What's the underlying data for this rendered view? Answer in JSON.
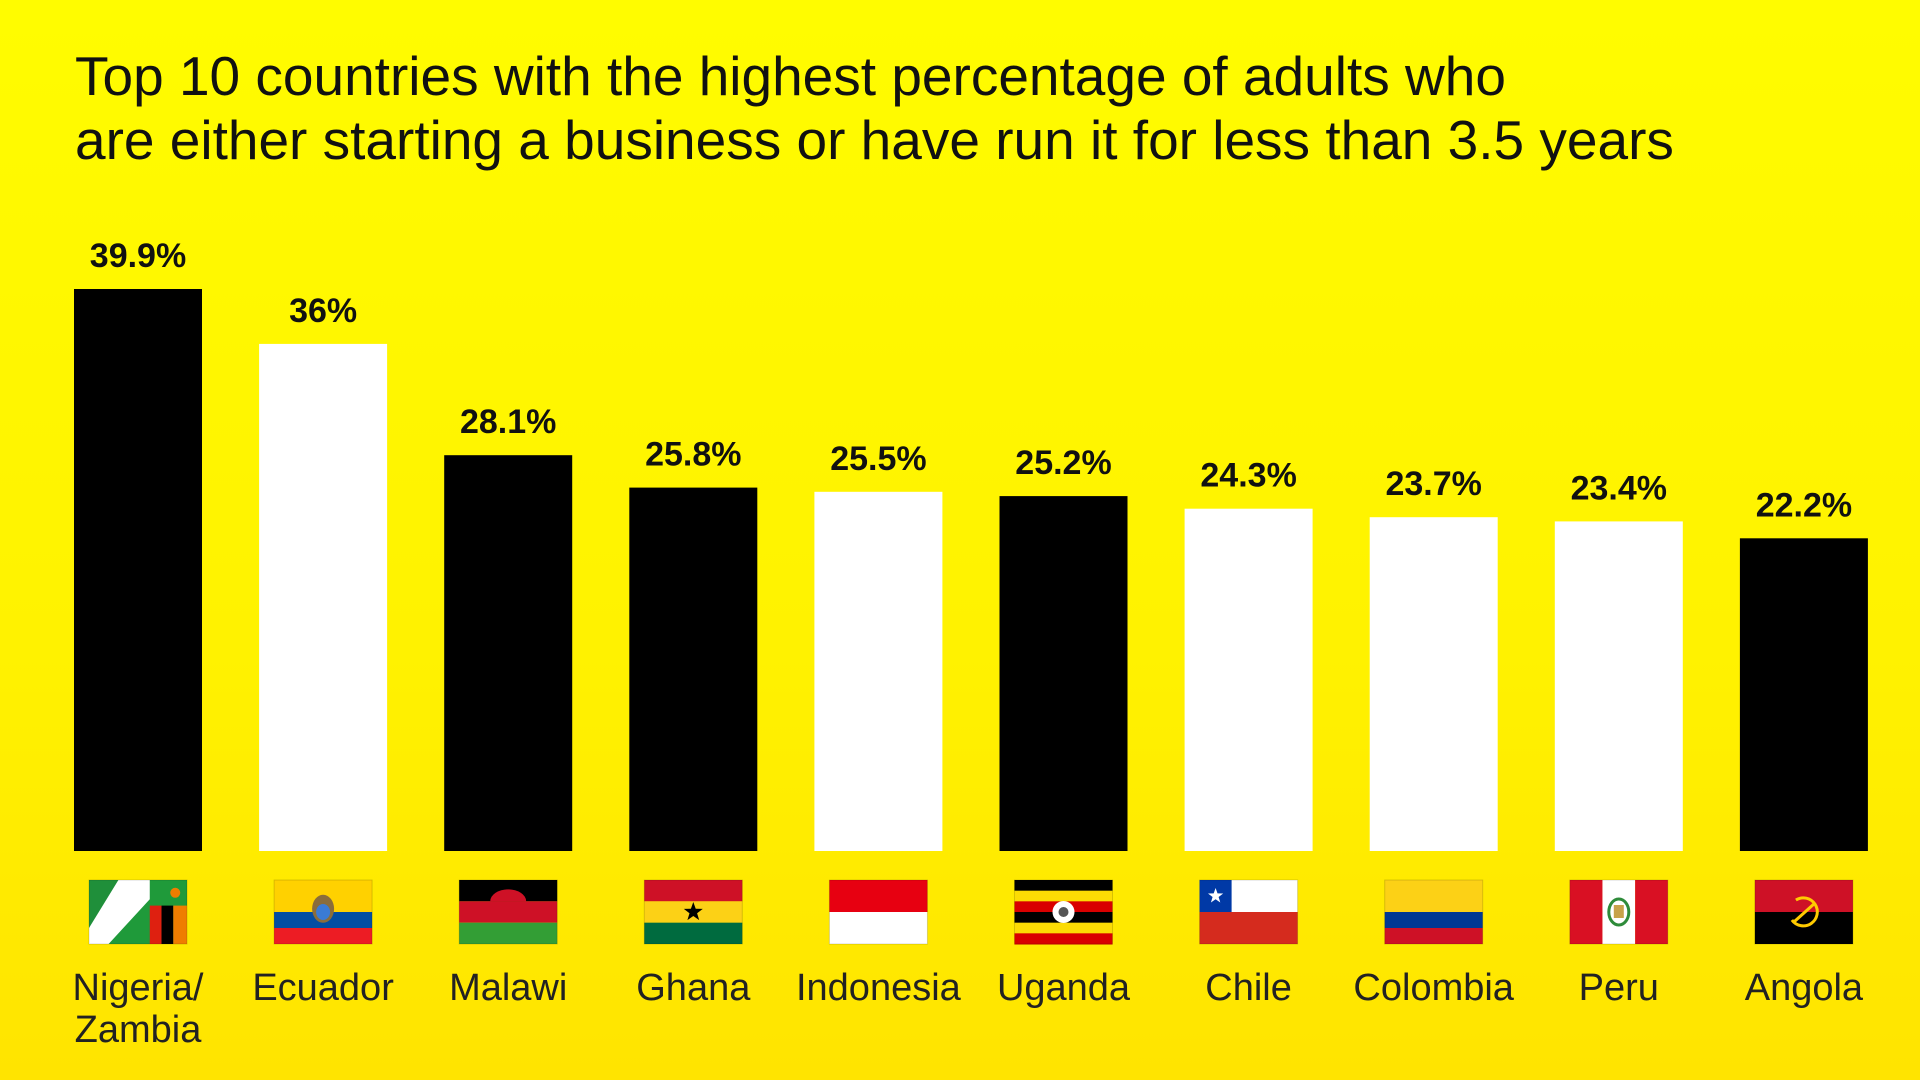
{
  "title_lines": [
    "Top 10 countries with the highest percentage of adults who",
    "are either starting a business or have run it for less than 3.5 years"
  ],
  "chart_data": {
    "type": "bar",
    "title": "Top 10 countries with the highest percentage of adults who are either starting a business or have run it for less than 3.5 years",
    "categories": [
      "Nigeria/ Zambia",
      "Ecuador",
      "Malawi",
      "Ghana",
      "Indonesia",
      "Uganda",
      "Chile",
      "Colombia",
      "Peru",
      "Angola"
    ],
    "category_lines": [
      [
        "Nigeria/",
        "Zambia"
      ],
      [
        "Ecuador"
      ],
      [
        "Malawi"
      ],
      [
        "Ghana"
      ],
      [
        "Indonesia"
      ],
      [
        "Uganda"
      ],
      [
        "Chile"
      ],
      [
        "Colombia"
      ],
      [
        "Peru"
      ],
      [
        "Angola"
      ]
    ],
    "values": [
      39.9,
      36,
      28.1,
      25.8,
      25.5,
      25.2,
      24.3,
      23.7,
      23.4,
      22.2
    ],
    "value_labels": [
      "39.9%",
      "36%",
      "28.1%",
      "25.8%",
      "25.5%",
      "25.2%",
      "24.3%",
      "23.7%",
      "23.4%",
      "22.2%"
    ],
    "bar_colors": [
      "#000000",
      "#ffffff",
      "#000000",
      "#000000",
      "#ffffff",
      "#000000",
      "#ffffff",
      "#ffffff",
      "#ffffff",
      "#000000"
    ],
    "flags": [
      "nigeria-zambia-flag-icon",
      "ecuador-flag-icon",
      "malawi-flag-icon",
      "ghana-flag-icon",
      "indonesia-flag-icon",
      "uganda-flag-icon",
      "chile-flag-icon",
      "colombia-flag-icon",
      "peru-flag-icon",
      "angola-flag-icon"
    ],
    "xlabel": "",
    "ylabel": "",
    "ylim": [
      0,
      39.9
    ],
    "grid": false,
    "legend": "none",
    "background": "#fff500"
  }
}
